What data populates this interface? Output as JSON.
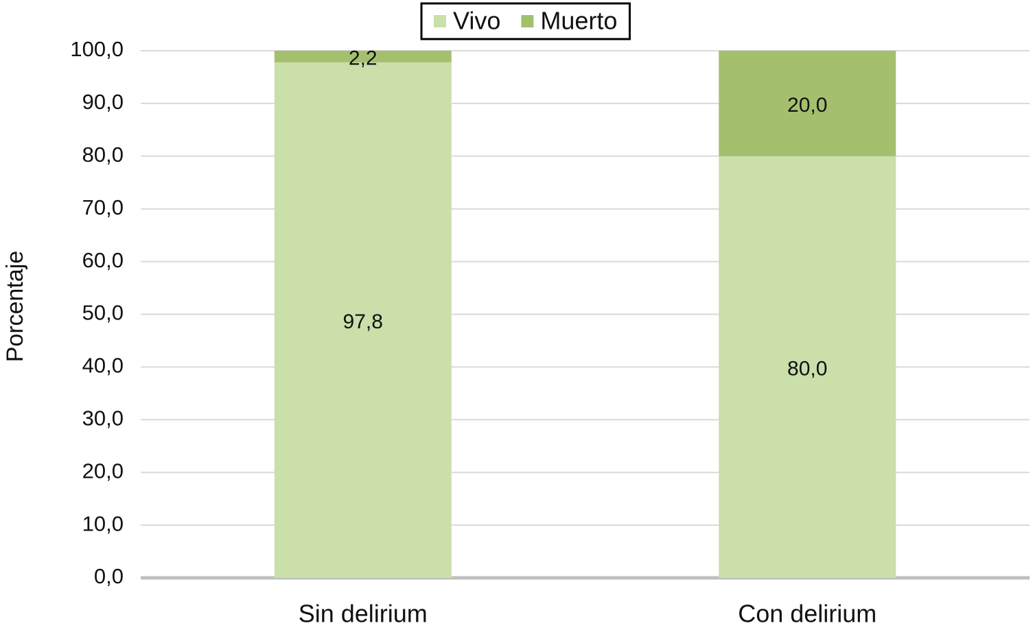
{
  "chart_data": {
    "type": "stacked_bar",
    "y_label": "Porcentaje",
    "categories": [
      "Sin delirium",
      "Con delirium"
    ],
    "series": [
      {
        "name": "Vivo",
        "color": "#cadfaa",
        "values": [
          97.8,
          80.0
        ],
        "value_labels": [
          "97,8",
          "80,0"
        ]
      },
      {
        "name": "Muerto",
        "color": "#a4c06f",
        "values": [
          2.2,
          20.0
        ],
        "value_labels": [
          "2,2",
          "20,0"
        ]
      }
    ],
    "ylim": [
      0,
      100
    ],
    "yticks": [
      {
        "value": 0,
        "label": "0,0"
      },
      {
        "value": 10,
        "label": "10,0"
      },
      {
        "value": 20,
        "label": "20,0"
      },
      {
        "value": 30,
        "label": "30,0"
      },
      {
        "value": 40,
        "label": "40,0"
      },
      {
        "value": 50,
        "label": "50,0"
      },
      {
        "value": 60,
        "label": "60,0"
      },
      {
        "value": 70,
        "label": "70,0"
      },
      {
        "value": 80,
        "label": "80,0"
      },
      {
        "value": 90,
        "label": "90,0"
      },
      {
        "value": 100,
        "label": "100,0"
      }
    ],
    "grid": true,
    "legend": "top"
  }
}
